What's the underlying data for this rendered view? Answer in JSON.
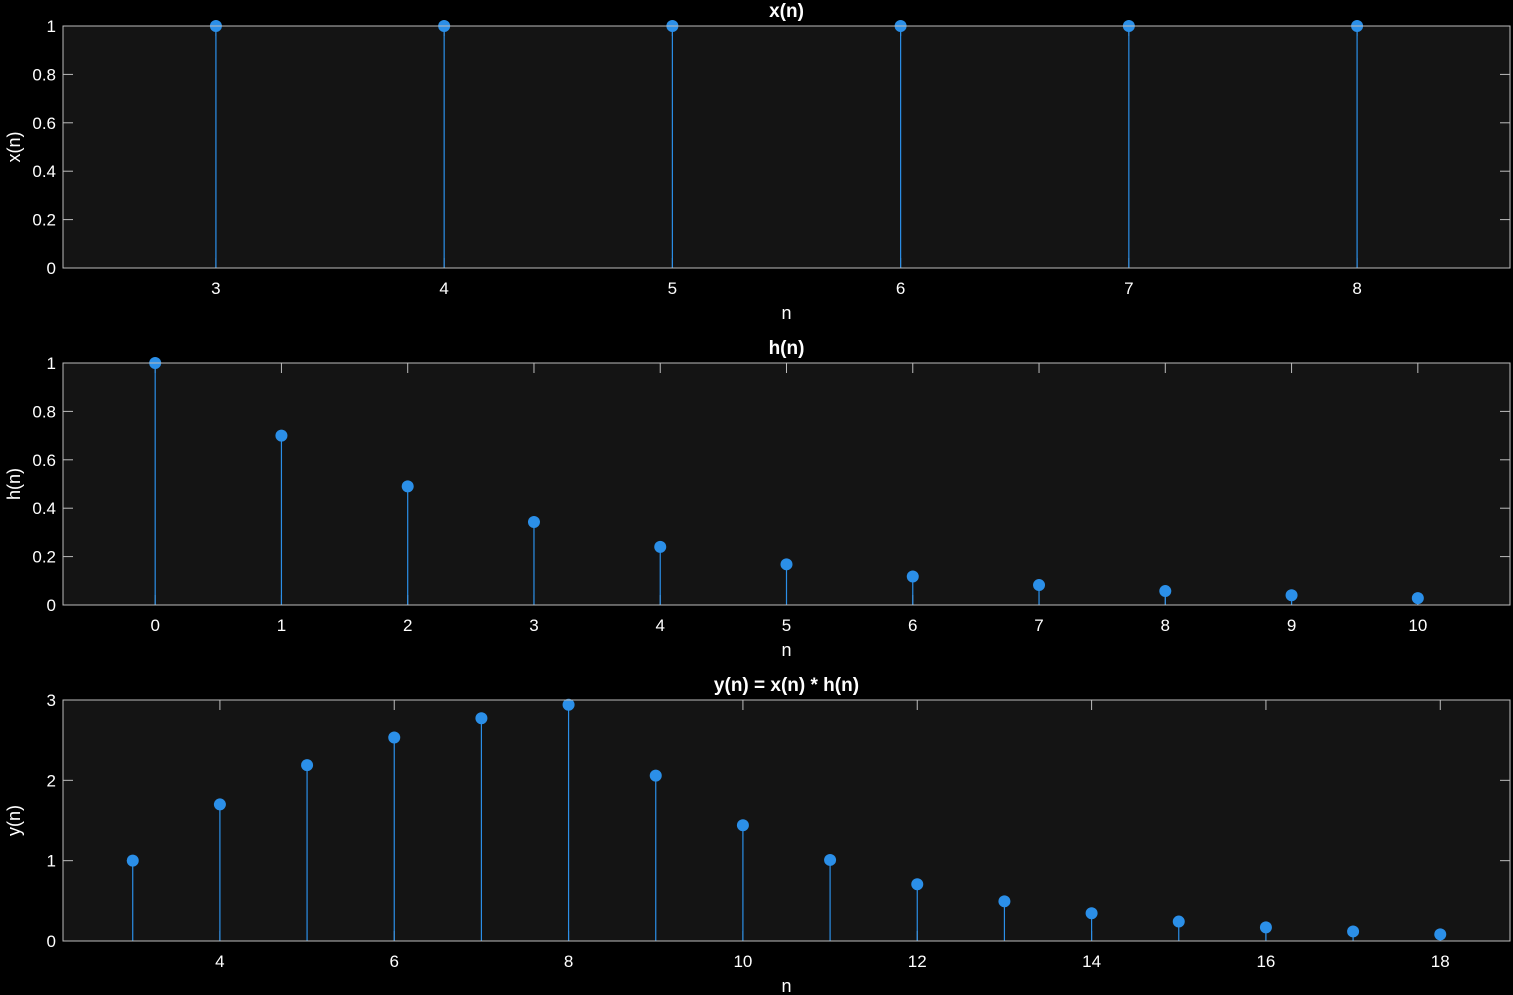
{
  "colors": {
    "stem": "#2b8fe8",
    "marker": "#2b8fe8",
    "axes_background": "#141414",
    "figure_background": "#000000",
    "axis": "#bdbdbd",
    "text": "#ffffff"
  },
  "chart_data": [
    {
      "type": "stem",
      "title": "x(n)",
      "xlabel": "n",
      "ylabel": "x(n)",
      "x": [
        3,
        4,
        5,
        6,
        7,
        8
      ],
      "y": [
        1,
        1,
        1,
        1,
        1,
        1
      ],
      "xlim": [
        2.33,
        8.67
      ],
      "ylim": [
        0,
        1
      ],
      "xticks": [
        3,
        4,
        5,
        6,
        7,
        8
      ],
      "xtick_labels": [
        "3",
        "4",
        "5",
        "6",
        "7",
        "8"
      ],
      "yticks": [
        0,
        0.2,
        0.4,
        0.6,
        0.8,
        1
      ],
      "ytick_labels": [
        "0",
        "0.2",
        "0.4",
        "0.6",
        "0.8",
        "1"
      ]
    },
    {
      "type": "stem",
      "title": "h(n)",
      "xlabel": "n",
      "ylabel": "h(n)",
      "x": [
        0,
        1,
        2,
        3,
        4,
        5,
        6,
        7,
        8,
        9,
        10
      ],
      "y": [
        1,
        0.7,
        0.49,
        0.343,
        0.2401,
        0.1681,
        0.1176,
        0.0824,
        0.0576,
        0.0404,
        0.0282
      ],
      "xlim": [
        -0.73,
        10.73
      ],
      "ylim": [
        0,
        1
      ],
      "xticks": [
        0,
        1,
        2,
        3,
        4,
        5,
        6,
        7,
        8,
        9,
        10
      ],
      "xtick_labels": [
        "0",
        "1",
        "2",
        "3",
        "4",
        "5",
        "6",
        "7",
        "8",
        "9",
        "10"
      ],
      "yticks": [
        0,
        0.2,
        0.4,
        0.6,
        0.8,
        1
      ],
      "ytick_labels": [
        "0",
        "0.2",
        "0.4",
        "0.6",
        "0.8",
        "1"
      ]
    },
    {
      "type": "stem",
      "title": "y(n) = x(n) * h(n)",
      "xlabel": "n",
      "ylabel": "y(n)",
      "x": [
        3,
        4,
        5,
        6,
        7,
        8,
        9,
        10,
        11,
        12,
        13,
        14,
        15,
        16,
        17,
        18
      ],
      "y": [
        1,
        1.7,
        2.19,
        2.533,
        2.773,
        2.941,
        2.059,
        1.441,
        1.009,
        0.706,
        0.494,
        0.346,
        0.242,
        0.17,
        0.119,
        0.083
      ],
      "xlim": [
        2.2,
        18.8
      ],
      "ylim": [
        0,
        3
      ],
      "xticks": [
        4,
        6,
        8,
        10,
        12,
        14,
        16,
        18
      ],
      "xtick_labels": [
        "4",
        "6",
        "8",
        "10",
        "12",
        "14",
        "16",
        "18"
      ],
      "yticks": [
        0,
        1,
        2,
        3
      ],
      "ytick_labels": [
        "0",
        "1",
        "2",
        "3"
      ]
    }
  ]
}
